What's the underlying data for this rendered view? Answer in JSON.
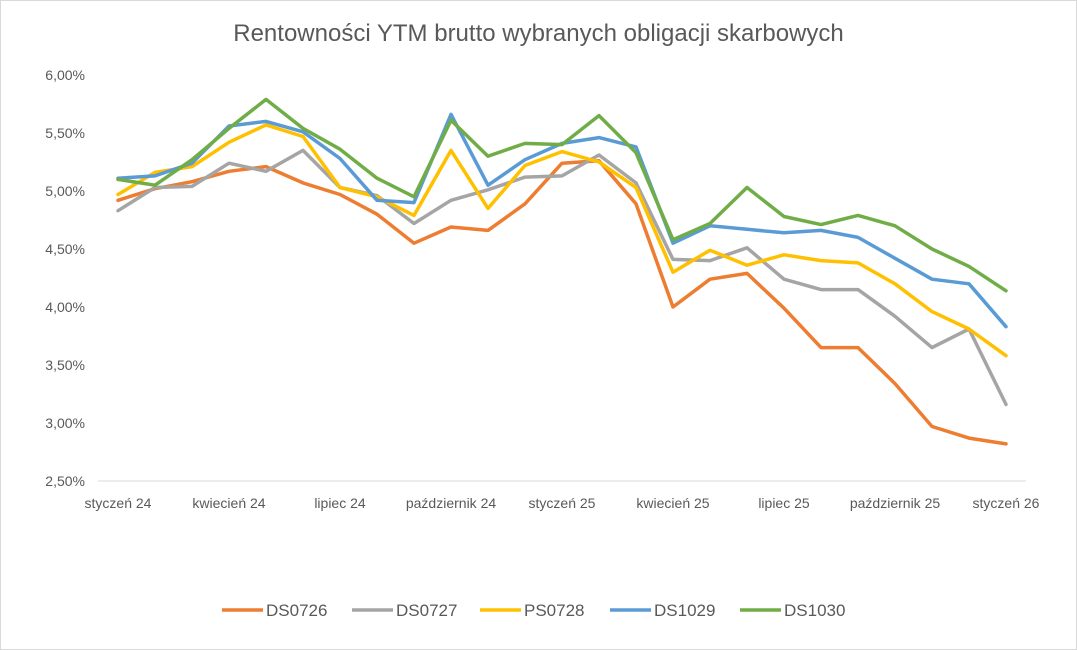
{
  "chart_data": {
    "type": "line",
    "title": "Rentowności YTM brutto wybranych obligacji skarbowych",
    "xlabel": "",
    "ylabel": "",
    "ylim": [
      2.5,
      6.0
    ],
    "y_ticks": [
      "2,50%",
      "3,00%",
      "3,50%",
      "4,00%",
      "4,50%",
      "5,00%",
      "5,50%",
      "6,00%"
    ],
    "y_tick_values": [
      2.5,
      3.0,
      3.5,
      4.0,
      4.5,
      5.0,
      5.5,
      6.0
    ],
    "x": [
      "2024-01",
      "2024-02",
      "2024-03",
      "2024-04",
      "2024-05",
      "2024-06",
      "2024-07",
      "2024-08",
      "2024-09",
      "2024-10",
      "2024-11",
      "2024-12",
      "2025-01",
      "2025-02",
      "2025-03",
      "2025-04",
      "2025-05",
      "2025-06",
      "2025-07",
      "2025-08",
      "2025-09",
      "2025-10",
      "2025-11",
      "2025-12",
      "2026-01"
    ],
    "x_tick_labels": [
      "styczeń 24",
      "kwiecień 24",
      "lipiec 24",
      "październik 24",
      "styczeń 25",
      "kwiecień 25",
      "lipiec 25",
      "październik 25",
      "styczeń 26"
    ],
    "x_tick_label_positions": [
      0,
      3,
      6,
      9,
      12,
      15,
      18,
      21,
      24
    ],
    "grid": false,
    "legend_position": "bottom",
    "series": [
      {
        "name": "DS0726",
        "color": "#ed7d31",
        "values": [
          4.92,
          5.02,
          5.08,
          5.17,
          5.21,
          5.07,
          4.97,
          4.8,
          4.55,
          4.69,
          4.66,
          4.89,
          5.24,
          5.26,
          4.89,
          4.0,
          4.24,
          4.29,
          3.99,
          3.65,
          3.65,
          3.34,
          2.97,
          2.87,
          2.82
        ]
      },
      {
        "name": "DS0727",
        "color": "#a5a5a5",
        "values": [
          4.83,
          5.03,
          5.04,
          5.24,
          5.17,
          5.35,
          5.03,
          4.96,
          4.72,
          4.92,
          5.01,
          5.12,
          5.13,
          5.31,
          5.07,
          4.41,
          4.4,
          4.51,
          4.24,
          4.15,
          4.15,
          3.92,
          3.65,
          3.81,
          3.16
        ]
      },
      {
        "name": "PS0728",
        "color": "#ffc000",
        "values": [
          4.97,
          5.16,
          5.21,
          5.42,
          5.57,
          5.47,
          5.03,
          4.95,
          4.79,
          5.35,
          4.85,
          5.22,
          5.34,
          5.25,
          5.03,
          4.3,
          4.49,
          4.36,
          4.45,
          4.4,
          4.38,
          4.2,
          3.96,
          3.81,
          3.58
        ]
      },
      {
        "name": "DS1029",
        "color": "#5b9bd5",
        "values": [
          5.11,
          5.13,
          5.24,
          5.56,
          5.6,
          5.51,
          5.28,
          4.92,
          4.9,
          5.66,
          5.05,
          5.27,
          5.41,
          5.46,
          5.38,
          4.55,
          4.7,
          4.67,
          4.64,
          4.66,
          4.6,
          4.42,
          4.24,
          4.2,
          3.83
        ]
      },
      {
        "name": "DS1030",
        "color": "#70ad47",
        "values": [
          5.1,
          5.05,
          5.27,
          5.54,
          5.79,
          5.54,
          5.36,
          5.11,
          4.95,
          5.61,
          5.3,
          5.41,
          5.4,
          5.65,
          5.33,
          4.58,
          4.72,
          5.03,
          4.78,
          4.71,
          4.79,
          4.7,
          4.5,
          4.35,
          4.14
        ]
      }
    ]
  }
}
